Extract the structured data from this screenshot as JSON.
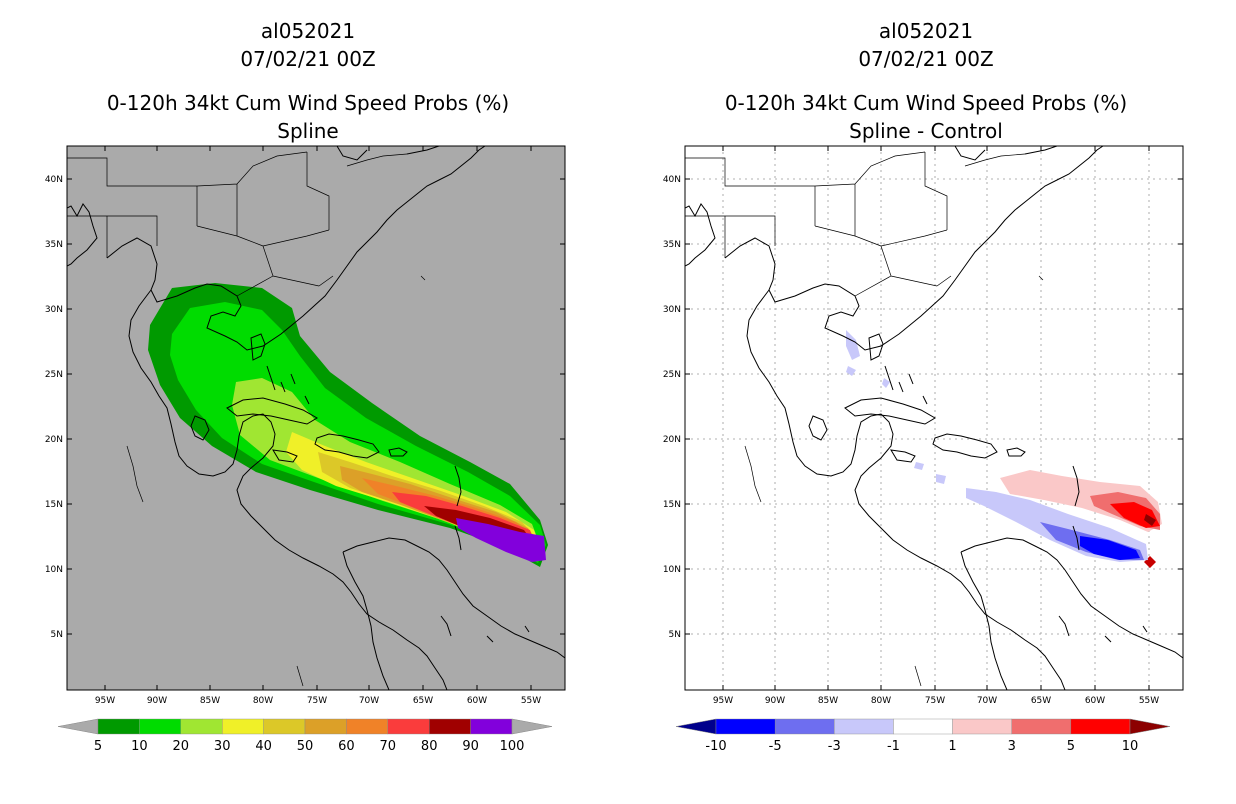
{
  "left_panel": {
    "storm_id": "al052021",
    "datetime": "07/02/21 00Z",
    "title": "0-120h 34kt Cum Wind Speed Probs (%)",
    "subtitle": "Spline",
    "lat_labels": [
      "40N",
      "35N",
      "30N",
      "25N",
      "20N",
      "15N",
      "10N",
      "5N"
    ],
    "lon_labels": [
      "95W",
      "90W",
      "85W",
      "80W",
      "75W",
      "70W",
      "65W",
      "60W",
      "55W"
    ],
    "colorbar": {
      "labels": [
        "5",
        "10",
        "20",
        "30",
        "40",
        "50",
        "60",
        "70",
        "80",
        "90",
        "100"
      ],
      "colors": [
        "#009a00",
        "#00dc00",
        "#a0e632",
        "#f0f028",
        "#dcc828",
        "#dca028",
        "#f08228",
        "#fa3c3c",
        "#a00000",
        "#8200dc"
      ],
      "under_color": "#aaaaaa",
      "over_color": "#aaaaaa"
    }
  },
  "right_panel": {
    "storm_id": "al052021",
    "datetime": "07/02/21 00Z",
    "title": "0-120h 34kt Cum Wind Speed Probs (%)",
    "subtitle": "Spline - Control",
    "lat_labels": [
      "40N",
      "35N",
      "30N",
      "25N",
      "20N",
      "15N",
      "10N",
      "5N"
    ],
    "lon_labels": [
      "95W",
      "90W",
      "85W",
      "80W",
      "75W",
      "70W",
      "65W",
      "60W",
      "55W"
    ],
    "colorbar": {
      "labels": [
        "-10",
        "-5",
        "-3",
        "-1",
        "1",
        "3",
        "5",
        "10"
      ],
      "colors": [
        "#0000ff",
        "#6e6ef0",
        "#c8c8fa",
        "#ffffff",
        "#fac8c8",
        "#f06e6e",
        "#ff0000"
      ],
      "under_color": "#00008c",
      "over_color": "#8c0000"
    }
  }
}
